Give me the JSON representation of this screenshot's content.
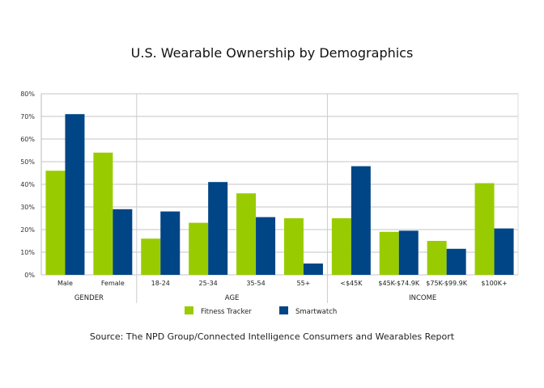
{
  "chart_data": {
    "type": "bar",
    "title": "U.S. Wearable Ownership by Demographics",
    "source": "Source: The NPD Group/Connected Intelligence Consumers and Wearables Report",
    "categories": [
      "Male",
      "Female",
      "18-24",
      "25-34",
      "35-54",
      "55+",
      "<$45K",
      "$45K-$74.9K",
      "$75K-$99.9K",
      "$100K+"
    ],
    "groups": [
      {
        "name": "GENDER",
        "count": 2
      },
      {
        "name": "AGE",
        "count": 4
      },
      {
        "name": "INCOME",
        "count": 4
      }
    ],
    "series": [
      {
        "name": "Fitness Tracker",
        "color": "#99cc00",
        "values": [
          46,
          54,
          16,
          23,
          36,
          25,
          25,
          19,
          15,
          40.5
        ]
      },
      {
        "name": "Smartwatch",
        "color": "#004586",
        "values": [
          71,
          29,
          28,
          41,
          25.5,
          5,
          48,
          19.5,
          11.5,
          20.5
        ]
      }
    ],
    "yticks": [
      "0%",
      "10%",
      "20%",
      "30%",
      "40%",
      "50%",
      "60%",
      "70%",
      "80%"
    ],
    "ylim": [
      0,
      80
    ],
    "grid": true,
    "legend": "bottom"
  }
}
